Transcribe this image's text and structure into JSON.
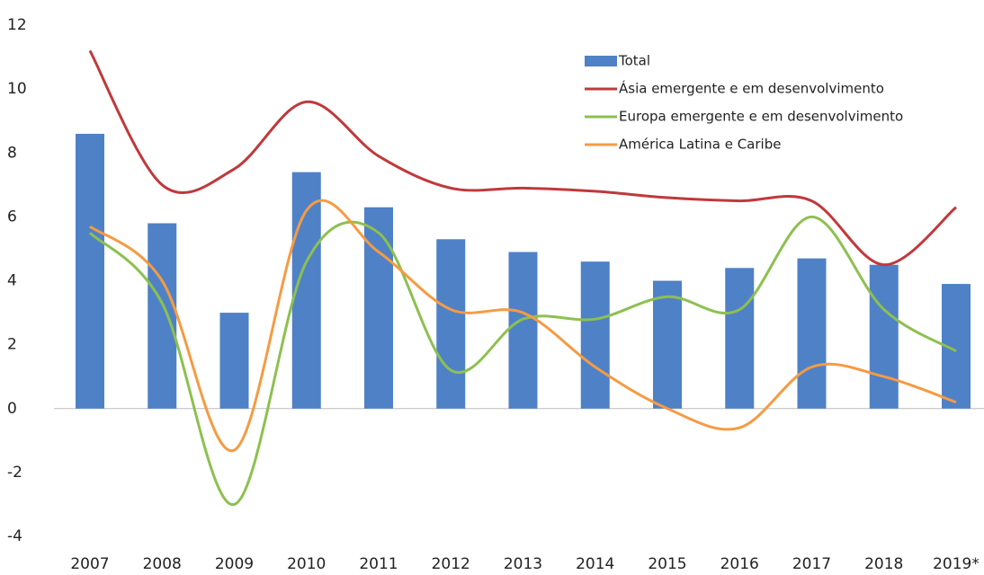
{
  "chart_data": {
    "type": "combo",
    "categories": [
      "2007",
      "2008",
      "2009",
      "2010",
      "2011",
      "2012",
      "2013",
      "2014",
      "2015",
      "2016",
      "2017",
      "2018",
      "2019*"
    ],
    "series": [
      {
        "name": "Total",
        "type": "bar",
        "color": "#4f81c7",
        "values": [
          8.6,
          5.8,
          3.0,
          7.4,
          6.3,
          5.3,
          4.9,
          4.6,
          4.0,
          4.4,
          4.7,
          4.5,
          3.9
        ]
      },
      {
        "name": "Ásia emergente e em desenvolvimento",
        "type": "line",
        "color": "#c0393b",
        "values": [
          11.2,
          7.0,
          7.5,
          9.6,
          7.9,
          6.9,
          6.9,
          6.8,
          6.6,
          6.5,
          6.5,
          4.5,
          6.3
        ]
      },
      {
        "name": "Europa emergente e em desenvolvimento",
        "type": "line",
        "color": "#8dc04f",
        "values": [
          5.5,
          3.3,
          -3.0,
          4.6,
          5.5,
          1.2,
          2.8,
          2.8,
          3.5,
          3.1,
          6.0,
          3.1,
          1.8
        ]
      },
      {
        "name": "América Latina e Caribe",
        "type": "line",
        "color": "#f59b42",
        "values": [
          5.7,
          4.0,
          -1.3,
          6.2,
          4.9,
          3.1,
          3.0,
          1.3,
          0.0,
          -0.6,
          1.3,
          1.0,
          0.2
        ]
      }
    ],
    "ylim": [
      -4,
      12
    ],
    "yticks": [
      -4,
      -2,
      0,
      2,
      4,
      6,
      8,
      10,
      12
    ],
    "grid": false,
    "legend": "top-right"
  }
}
